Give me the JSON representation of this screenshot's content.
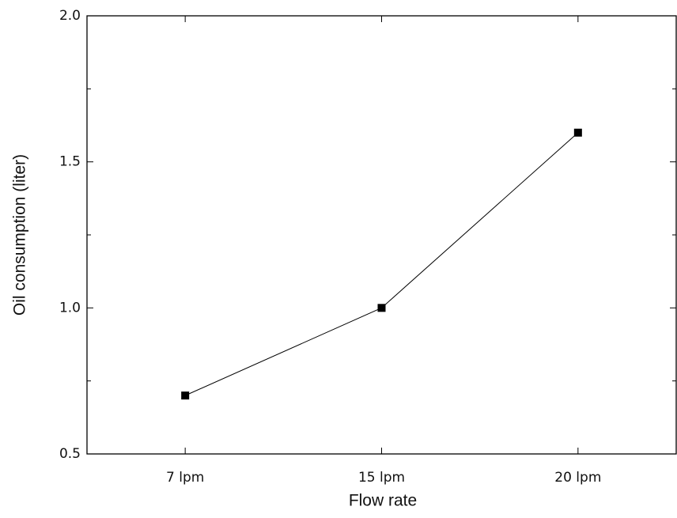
{
  "chart_data": {
    "type": "line",
    "xlabel": "Flow rate",
    "ylabel": "Oil consumption (liter)",
    "categories": [
      "7 lpm",
      "15 lpm",
      "20 lpm"
    ],
    "values": [
      0.7,
      1.0,
      1.6
    ],
    "color": "#000000",
    "ylim": [
      0.5,
      2.0
    ],
    "yticks": [
      0.5,
      {
        "value": 1,
        "label": "1.0"
      },
      1.5,
      {
        "value": 2,
        "label": "2.0"
      }
    ],
    "minor_yticks": [
      0.75,
      1.25,
      1.75
    ],
    "grid": false
  }
}
